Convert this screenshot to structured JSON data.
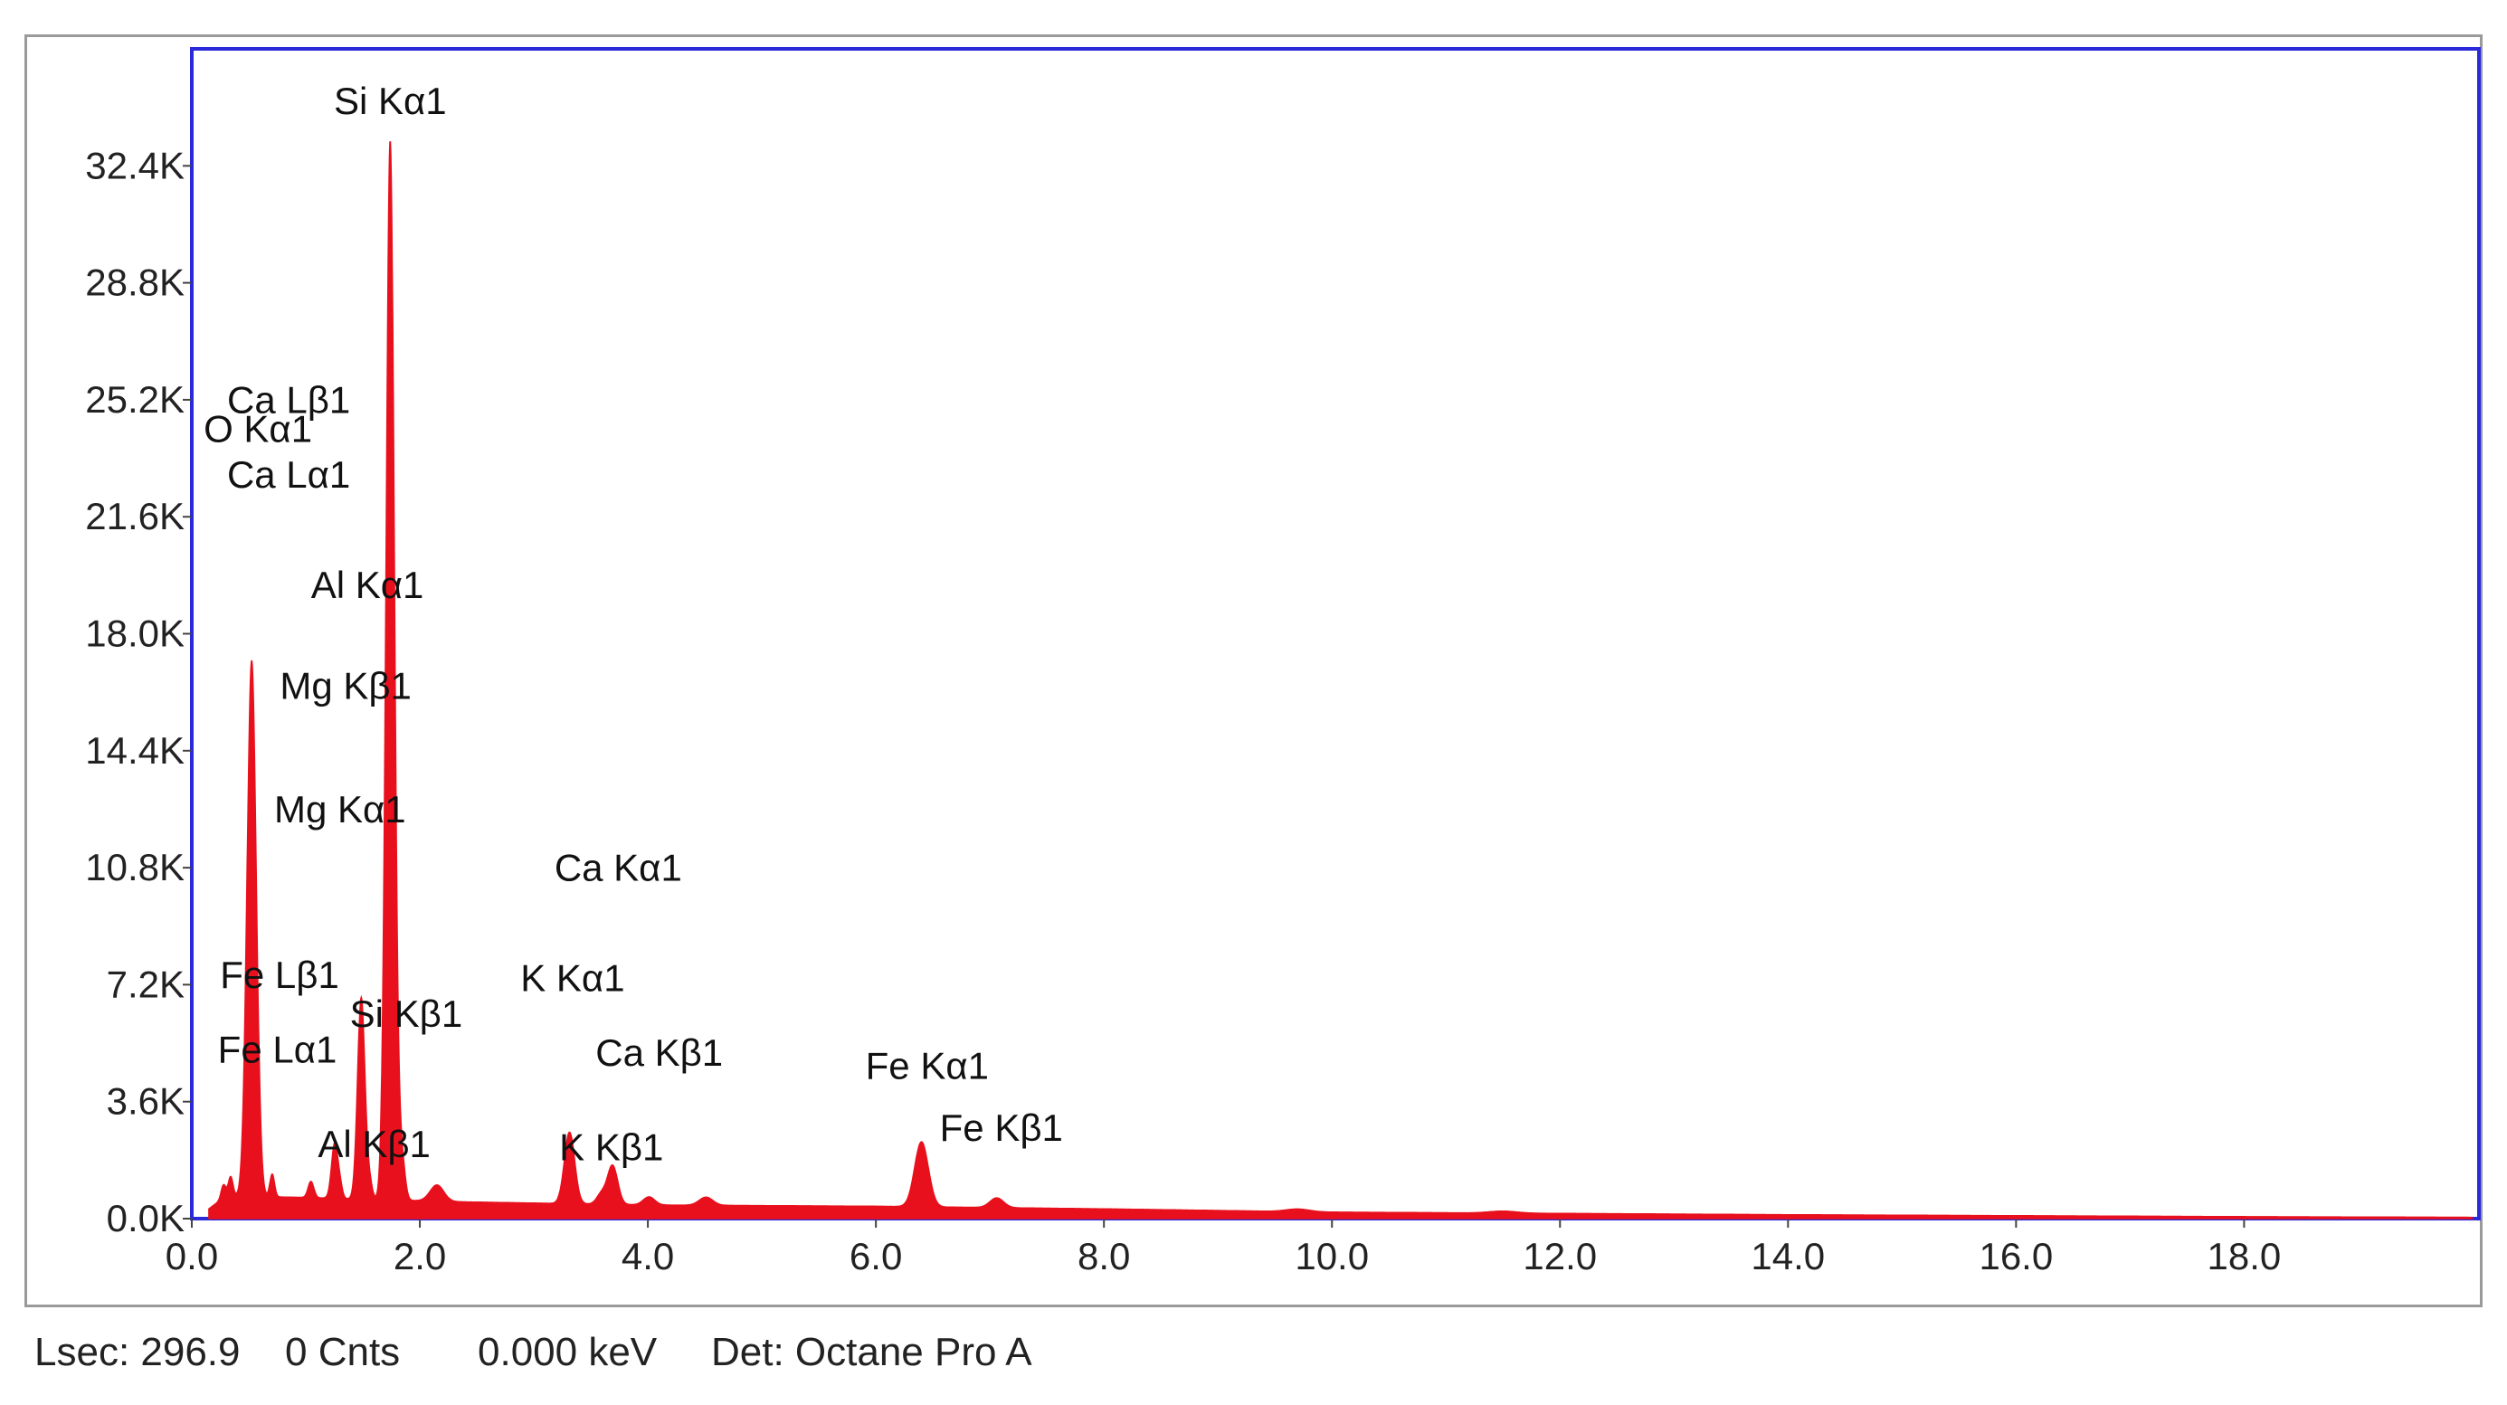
{
  "chart_data": {
    "type": "area",
    "title": "",
    "xlabel": "",
    "ylabel": "",
    "x_unit": "keV",
    "xlim": [
      0,
      20.06
    ],
    "ylim": [
      0,
      36000
    ],
    "x_ticks": [
      0,
      2,
      4,
      6,
      8,
      10,
      12,
      14,
      16,
      18
    ],
    "x_tick_labels": [
      "0.0",
      "2.0",
      "4.0",
      "6.0",
      "8.0",
      "10.0",
      "12.0",
      "14.0",
      "16.0",
      "18.0"
    ],
    "y_ticks": [
      0,
      3600,
      7200,
      10800,
      14400,
      18000,
      21600,
      25200,
      28800,
      32400
    ],
    "y_tick_labels": [
      "0.0K",
      "3.6K",
      "7.2K",
      "10.8K",
      "14.4K",
      "18.0K",
      "21.6K",
      "25.2K",
      "28.8K",
      "32.4K"
    ],
    "grid": false,
    "series_color": "#e8101c",
    "plot_border_color": "#2a2ad8",
    "background": [
      0.15,
      300,
      0.3,
      700,
      1.0,
      650,
      2.3,
      520,
      4.0,
      420,
      6.0,
      380,
      8.0,
      300,
      10.0,
      200,
      12.0,
      160,
      14.0,
      120,
      16.0,
      90,
      18.0,
      60,
      20.0,
      40
    ],
    "peaks": [
      {
        "x": 0.277,
        "y": 400,
        "w": 0.02
      },
      {
        "x": 0.341,
        "y": 600,
        "w": 0.02
      },
      {
        "x": 0.525,
        "y": 16500,
        "w": 0.04
      },
      {
        "x": 0.705,
        "y": 700,
        "w": 0.02
      },
      {
        "x": 1.045,
        "y": 500,
        "w": 0.025
      },
      {
        "x": 1.254,
        "y": 1700,
        "w": 0.028
      },
      {
        "x": 1.303,
        "y": 300,
        "w": 0.02
      },
      {
        "x": 1.486,
        "y": 6200,
        "w": 0.032
      },
      {
        "x": 1.557,
        "y": 500,
        "w": 0.025
      },
      {
        "x": 1.74,
        "y": 32600,
        "w": 0.036
      },
      {
        "x": 1.837,
        "y": 1400,
        "w": 0.03
      },
      {
        "x": 2.15,
        "y": 500,
        "w": 0.06
      },
      {
        "x": 3.313,
        "y": 2200,
        "w": 0.045
      },
      {
        "x": 3.59,
        "y": 300,
        "w": 0.04
      },
      {
        "x": 3.69,
        "y": 1200,
        "w": 0.045
      },
      {
        "x": 4.01,
        "y": 250,
        "w": 0.05
      },
      {
        "x": 4.51,
        "y": 250,
        "w": 0.06
      },
      {
        "x": 6.4,
        "y": 2000,
        "w": 0.06
      },
      {
        "x": 7.06,
        "y": 300,
        "w": 0.06
      },
      {
        "x": 9.7,
        "y": 80,
        "w": 0.1
      },
      {
        "x": 11.5,
        "y": 60,
        "w": 0.12
      }
    ],
    "annotations": [
      {
        "text": "Si Kα1",
        "x": 1.74,
        "y": 34000
      },
      {
        "text": "Ca Lβ1",
        "x": 0.85,
        "y": 24800
      },
      {
        "text": "O  Kα1",
        "x": 0.58,
        "y": 23900
      },
      {
        "text": "Ca Lα1",
        "x": 0.85,
        "y": 22500
      },
      {
        "text": "Al Kα1",
        "x": 1.54,
        "y": 19100
      },
      {
        "text": "Mg Kβ1",
        "x": 1.35,
        "y": 16000
      },
      {
        "text": "Mg Kα1",
        "x": 1.3,
        "y": 12200
      },
      {
        "text": "Ca Kα1",
        "x": 3.74,
        "y": 10400
      },
      {
        "text": "K  Kα1",
        "x": 3.34,
        "y": 7000
      },
      {
        "text": "Fe Lβ1",
        "x": 0.77,
        "y": 7100
      },
      {
        "text": "Si Kβ1",
        "x": 1.88,
        "y": 5900
      },
      {
        "text": "Fe Lα1",
        "x": 0.75,
        "y": 4800
      },
      {
        "text": "Ca Kβ1",
        "x": 4.1,
        "y": 4700
      },
      {
        "text": "Fe Kα1",
        "x": 6.45,
        "y": 4300
      },
      {
        "text": "Al Kβ1",
        "x": 1.6,
        "y": 1900
      },
      {
        "text": "K  Kβ1",
        "x": 3.68,
        "y": 1800
      },
      {
        "text": "Fe Kβ1",
        "x": 7.1,
        "y": 2400
      }
    ]
  },
  "status": {
    "lsec": "Lsec: 296.9",
    "cnts": "0 Cnts",
    "kev": "0.000 keV",
    "det": "Det: Octane Pro A"
  }
}
